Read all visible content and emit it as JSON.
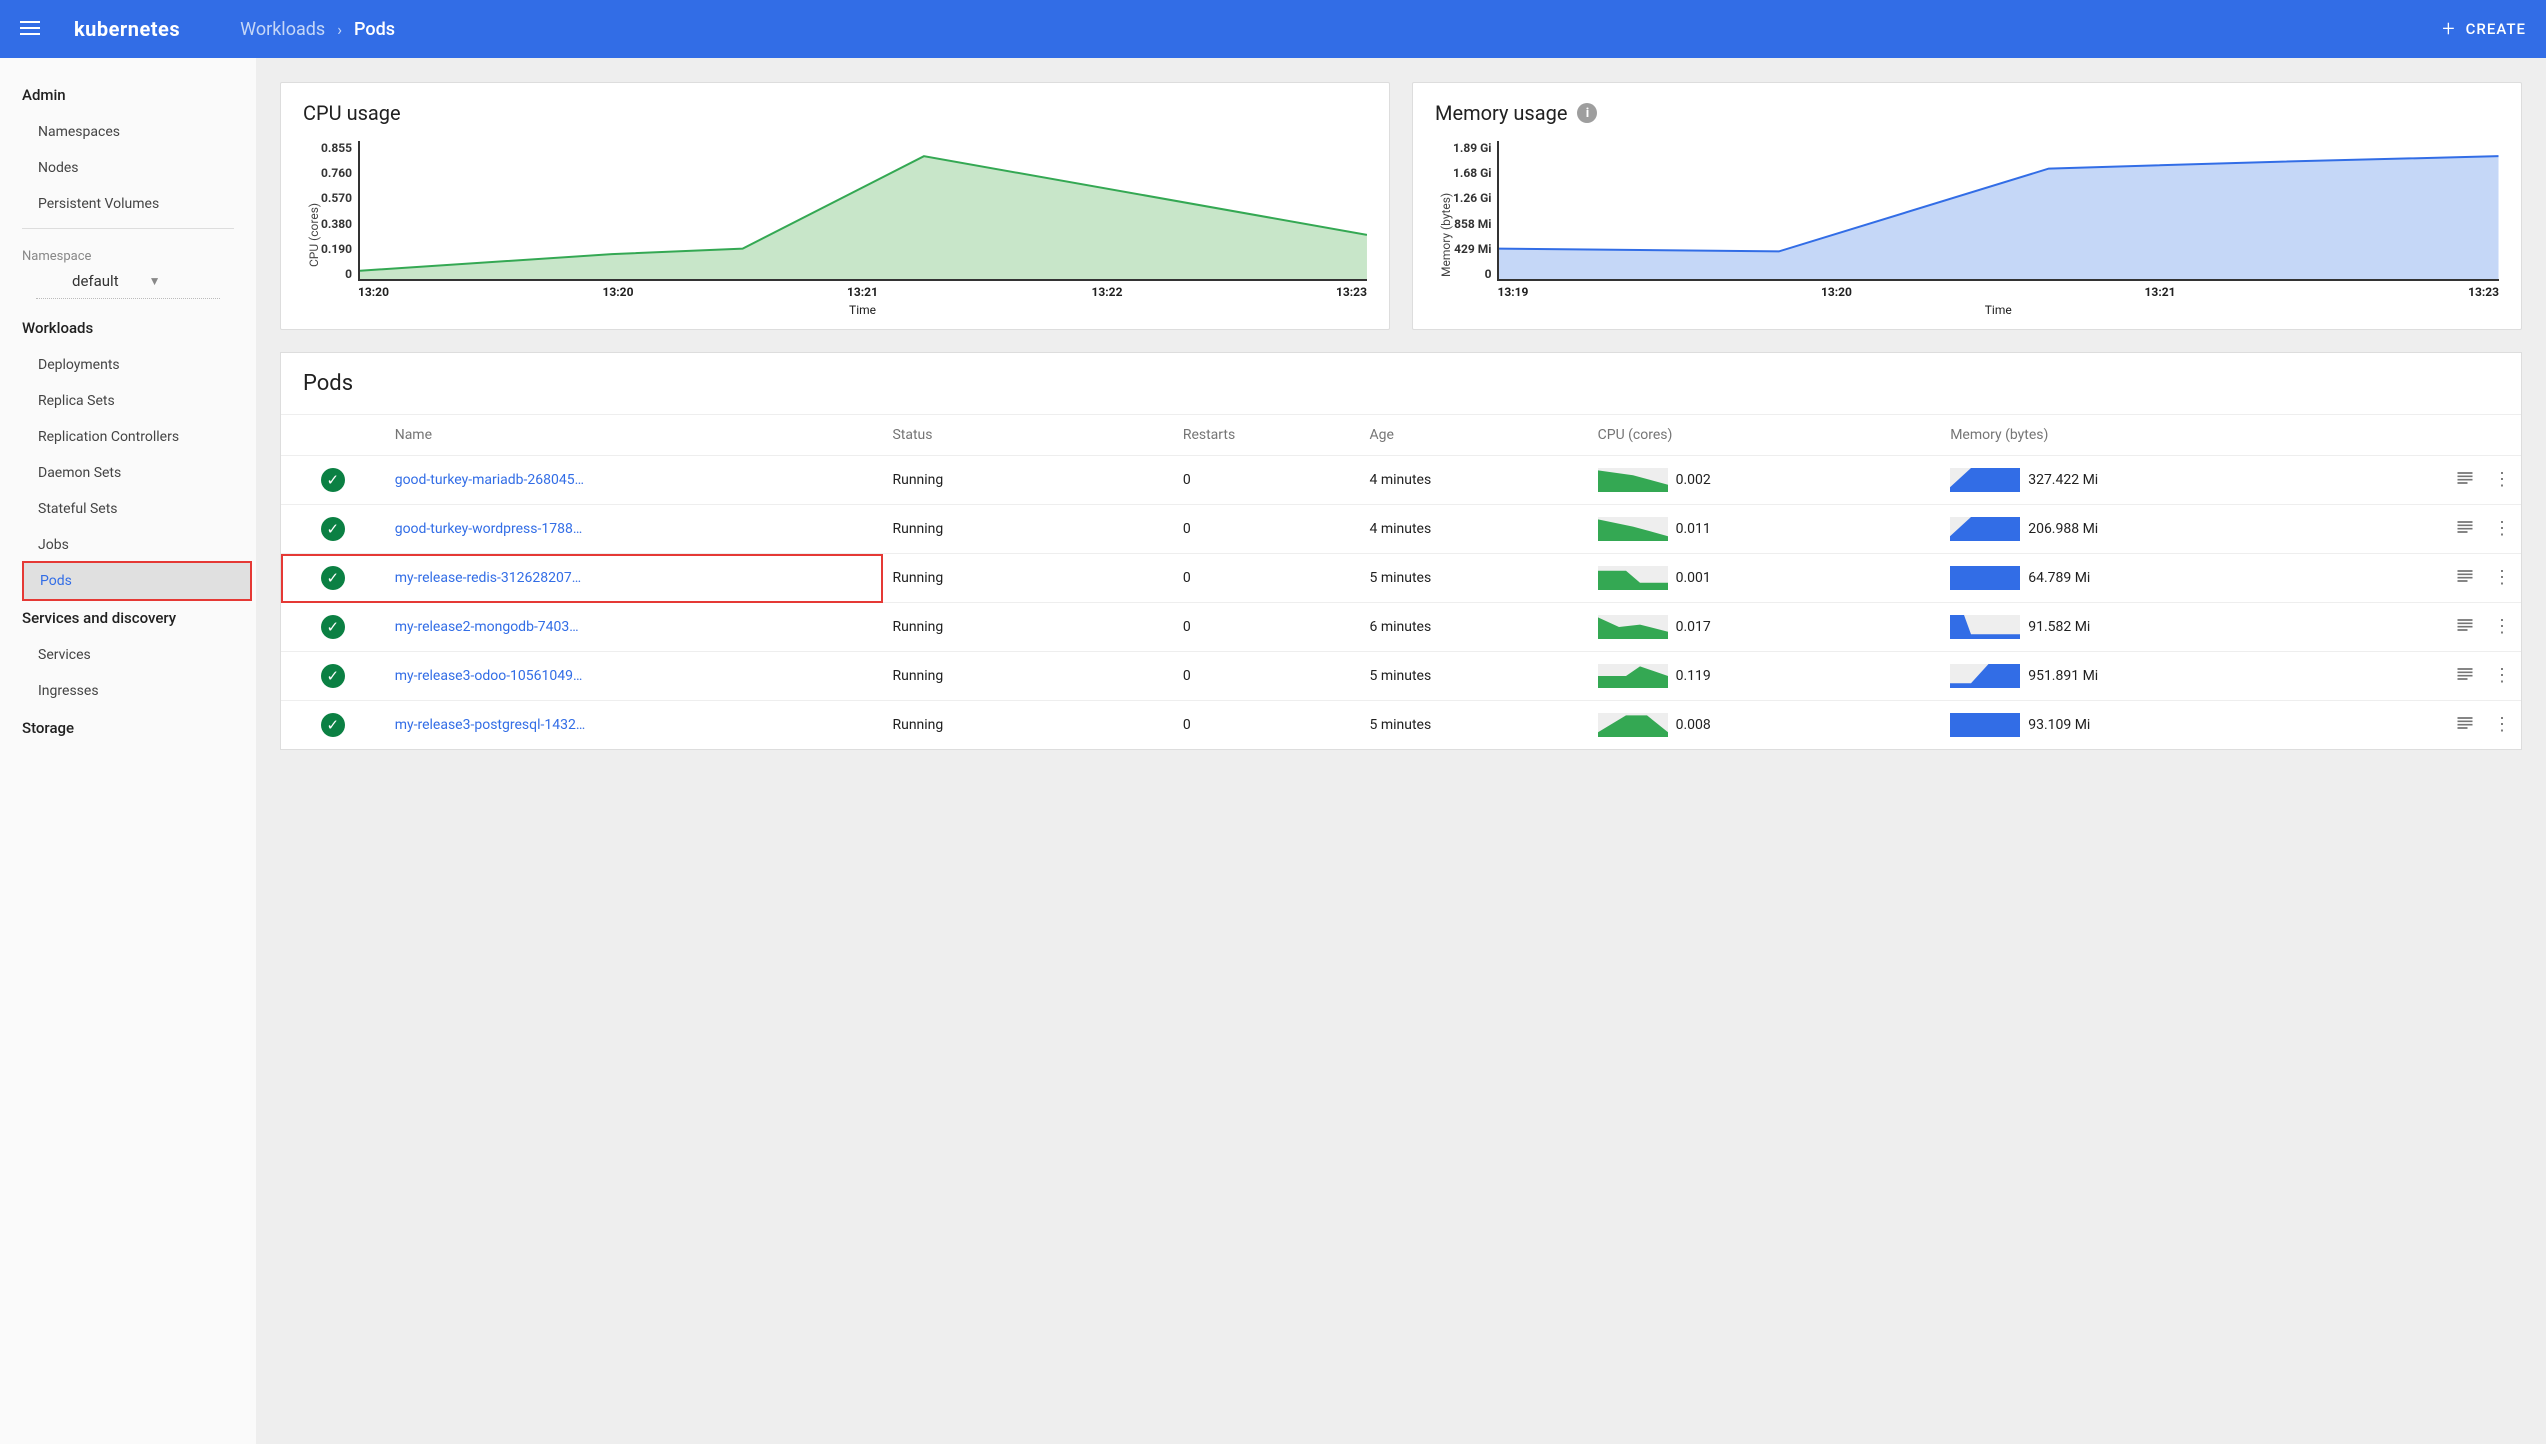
{
  "header": {
    "logo": "kubernetes",
    "breadcrumb_parent": "Workloads",
    "breadcrumb_current": "Pods",
    "create_label": "CREATE"
  },
  "sidebar": {
    "admin_label": "Admin",
    "admin_items": [
      "Namespaces",
      "Nodes",
      "Persistent Volumes"
    ],
    "namespace_label": "Namespace",
    "namespace_value": "default",
    "workloads_label": "Workloads",
    "workloads_items": [
      "Deployments",
      "Replica Sets",
      "Replication Controllers",
      "Daemon Sets",
      "Stateful Sets",
      "Jobs",
      "Pods"
    ],
    "workloads_active_index": 6,
    "services_label": "Services and discovery",
    "services_items": [
      "Services",
      "Ingresses"
    ],
    "storage_label": "Storage"
  },
  "cpu_chart": {
    "title": "CPU usage",
    "ylabel": "CPU (cores)",
    "xlabel": "Time",
    "yticks": [
      "0.855",
      "0.760",
      "0.570",
      "0.380",
      "0.190",
      "0"
    ],
    "xticks": [
      "13:20",
      "13:20",
      "13:21",
      "13:22",
      "13:23"
    ],
    "stroke": "#34a853",
    "fill": "#c8e6c9",
    "points": [
      [
        0,
        0.06
      ],
      [
        0.25,
        0.18
      ],
      [
        0.38,
        0.22
      ],
      [
        0.56,
        0.89
      ],
      [
        1.0,
        0.32
      ]
    ]
  },
  "mem_chart": {
    "title": "Memory usage",
    "ylabel": "Memory (bytes)",
    "xlabel": "Time",
    "yticks": [
      "1.89 Gi",
      "1.68 Gi",
      "1.26 Gi",
      "858 Mi",
      "429 Mi",
      "0"
    ],
    "xticks": [
      "13:19",
      "13:20",
      "13:21",
      "13:23"
    ],
    "stroke": "#326de6",
    "fill": "#c5d7f7",
    "points": [
      [
        0,
        0.22
      ],
      [
        0.28,
        0.2
      ],
      [
        0.55,
        0.8
      ],
      [
        0.78,
        0.85
      ],
      [
        1.0,
        0.89
      ]
    ]
  },
  "pods": {
    "title": "Pods",
    "columns": [
      "Name",
      "Status",
      "Restarts",
      "Age",
      "CPU (cores)",
      "Memory (bytes)"
    ],
    "cpu_color": "#34a853",
    "mem_color": "#326de6",
    "highlighted_row_index": 2,
    "rows": [
      {
        "name": "good-turkey-mariadb-268045…",
        "status": "Running",
        "restarts": "0",
        "age": "4 minutes",
        "cpu": "0.002",
        "mem": "327.422 Mi",
        "cpu_spark": [
          [
            0,
            0.9
          ],
          [
            0.5,
            0.7
          ],
          [
            1,
            0.3
          ]
        ],
        "mem_spark": [
          [
            0,
            0.2
          ],
          [
            0.3,
            1.0
          ],
          [
            1,
            1.0
          ]
        ]
      },
      {
        "name": "good-turkey-wordpress-1788…",
        "status": "Running",
        "restarts": "0",
        "age": "4 minutes",
        "cpu": "0.011",
        "mem": "206.988 Mi",
        "cpu_spark": [
          [
            0,
            0.9
          ],
          [
            0.5,
            0.6
          ],
          [
            1,
            0.2
          ]
        ],
        "mem_spark": [
          [
            0,
            0.2
          ],
          [
            0.3,
            1.0
          ],
          [
            1,
            1.0
          ]
        ]
      },
      {
        "name": "my-release-redis-312628207…",
        "status": "Running",
        "restarts": "0",
        "age": "5 minutes",
        "cpu": "0.001",
        "mem": "64.789 Mi",
        "cpu_spark": [
          [
            0,
            0.8
          ],
          [
            0.4,
            0.8
          ],
          [
            0.6,
            0.3
          ],
          [
            1,
            0.3
          ]
        ],
        "mem_spark": [
          [
            0,
            1.0
          ],
          [
            1,
            1.0
          ]
        ]
      },
      {
        "name": "my-release2-mongodb-7403…",
        "status": "Running",
        "restarts": "0",
        "age": "6 minutes",
        "cpu": "0.017",
        "mem": "91.582 Mi",
        "cpu_spark": [
          [
            0,
            0.9
          ],
          [
            0.3,
            0.5
          ],
          [
            0.6,
            0.6
          ],
          [
            1,
            0.3
          ]
        ],
        "mem_spark": [
          [
            0,
            1.0
          ],
          [
            0.2,
            1.0
          ],
          [
            0.3,
            0.2
          ],
          [
            1,
            0.2
          ]
        ]
      },
      {
        "name": "my-release3-odoo-10561049…",
        "status": "Running",
        "restarts": "0",
        "age": "5 minutes",
        "cpu": "0.119",
        "mem": "951.891 Mi",
        "cpu_spark": [
          [
            0,
            0.5
          ],
          [
            0.4,
            0.5
          ],
          [
            0.6,
            0.9
          ],
          [
            1,
            0.5
          ]
        ],
        "mem_spark": [
          [
            0,
            0.2
          ],
          [
            0.3,
            0.2
          ],
          [
            0.55,
            1.0
          ],
          [
            1,
            1.0
          ]
        ]
      },
      {
        "name": "my-release3-postgresql-1432…",
        "status": "Running",
        "restarts": "0",
        "age": "5 minutes",
        "cpu": "0.008",
        "mem": "93.109 Mi",
        "cpu_spark": [
          [
            0,
            0.2
          ],
          [
            0.4,
            0.9
          ],
          [
            0.7,
            0.9
          ],
          [
            1,
            0.2
          ]
        ],
        "mem_spark": [
          [
            0,
            1.0
          ],
          [
            1,
            1.0
          ]
        ]
      }
    ]
  }
}
